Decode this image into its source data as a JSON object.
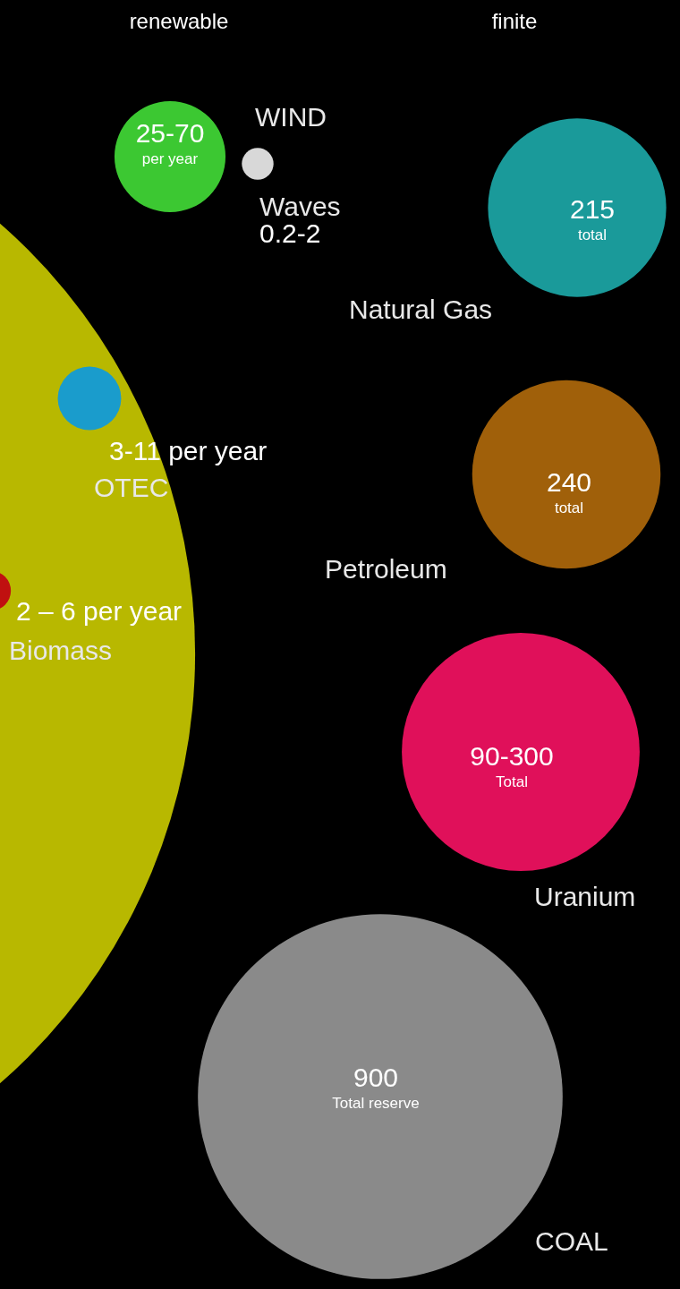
{
  "chart_data": {
    "type": "other",
    "categories": [
      null,
      "WIND",
      "Waves",
      "OTEC",
      "Biomass",
      "Natural Gas",
      "Petroleum",
      "Uranium",
      "COAL"
    ],
    "values": [
      null,
      null,
      null,
      null,
      null,
      215,
      240,
      null,
      900
    ],
    "colors": [
      "#b8b800",
      "#3cc832",
      "#d8d8d8",
      "#1a9ccc",
      "#c01010",
      "#1a9a9a",
      "#a0600a",
      "#e0105a",
      "#8a8a8a"
    ],
    "value_labels": [
      null,
      "25-70\nper year",
      "0.2-2",
      "3-11 per year",
      "2 – 6 per year",
      "215\ntotal",
      "240\ntotal",
      "90-300\nTotal",
      "900\nTotal reserve"
    ],
    "annotations": [
      "renewable",
      "finite"
    ]
  }
}
